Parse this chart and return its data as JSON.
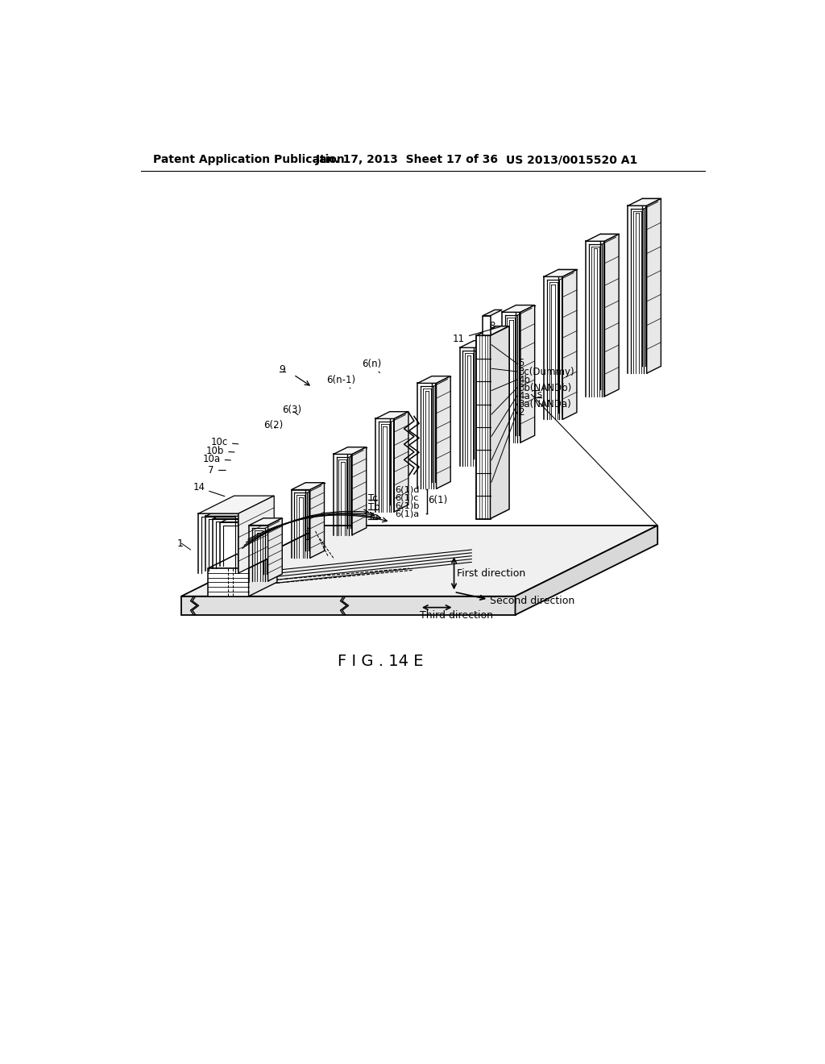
{
  "header_left": "Patent Application Publication",
  "header_center": "Jan. 17, 2013  Sheet 17 of 36",
  "header_right": "US 2013/0015520 A1",
  "fig_caption": "F I G . 14 E",
  "background_color": "#ffffff"
}
